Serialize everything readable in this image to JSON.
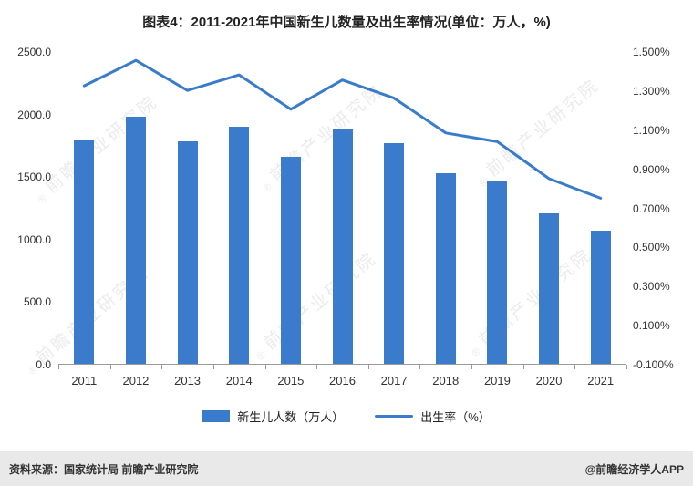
{
  "title": "图表4：2011-2021年中国新生儿数量及出生率情况(单位：万人，%)",
  "watermark": {
    "mark": "®",
    "text": "前瞻产业研究院"
  },
  "chart_data": {
    "type": "bar+line",
    "categories": [
      "2011",
      "2012",
      "2013",
      "2014",
      "2015",
      "2016",
      "2017",
      "2018",
      "2019",
      "2020",
      "2021"
    ],
    "series": [
      {
        "name": "新生儿人数（万人）",
        "type": "bar",
        "axis": "left",
        "values": [
          1790,
          1973,
          1776,
          1897,
          1655,
          1883,
          1765,
          1523,
          1465,
          1200,
          1062
        ]
      },
      {
        "name": "出生率（%）",
        "type": "line",
        "axis": "right",
        "values": [
          1.327,
          1.457,
          1.303,
          1.383,
          1.207,
          1.357,
          1.264,
          1.086,
          1.041,
          0.852,
          0.752
        ]
      }
    ],
    "left_axis": {
      "min": 0,
      "max": 2500,
      "tick_labels": [
        "2500.0",
        "2000.0",
        "1500.0",
        "1000.0",
        "500.0",
        "0.0"
      ]
    },
    "right_axis": {
      "min": -0.1,
      "max": 1.5,
      "tick_labels": [
        "1.500%",
        "1.300%",
        "1.100%",
        "0.900%",
        "0.700%",
        "0.500%",
        "0.300%",
        "0.100%",
        "-0.100%"
      ]
    },
    "colors": {
      "bar": "#3a7ccb",
      "line": "#3a7ccb"
    },
    "grid": false,
    "legend_position": "bottom"
  },
  "legend": {
    "bar_label": "新生儿人数（万人）",
    "line_label": "出生率（%）"
  },
  "footer": {
    "source": "资料来源：国家统计局 前瞻产业研究院",
    "credit": "@前瞻经济学人APP"
  }
}
